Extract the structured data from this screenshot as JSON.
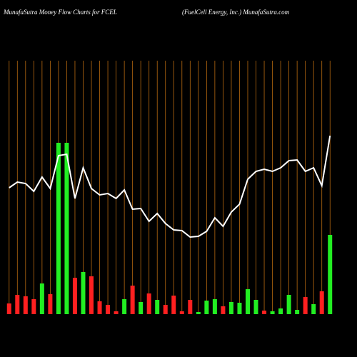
{
  "chart_data": {
    "type": "money-flow",
    "title": "MunafaSutra  Money Flow  Charts for FCEL",
    "subtitle": "(FuelCell Energy,  Inc.) MunafaSutra.com",
    "categories": [
      null,
      null,
      null,
      null,
      null,
      null,
      null,
      null,
      null,
      null,
      null,
      null,
      null,
      null,
      null,
      null,
      null,
      null,
      null,
      null,
      null,
      null,
      null,
      null,
      null,
      null,
      null,
      null,
      null,
      null,
      null,
      null,
      null,
      null,
      null,
      null,
      null,
      null,
      null,
      null
    ],
    "values": [
      15,
      27,
      25,
      21,
      43,
      28,
      240,
      240,
      51,
      59,
      53,
      18,
      13,
      4,
      21,
      40,
      17,
      29,
      20,
      13,
      26,
      4,
      20,
      3,
      19,
      21,
      11,
      17,
      16,
      35,
      20,
      5,
      4,
      8,
      27,
      6,
      24,
      14,
      32,
      111
    ],
    "colors": [
      "#ff2020",
      "#ff2020",
      "#ff2020",
      "#ff2020",
      "#22ee22",
      "#ff2020",
      "#22ee22",
      "#22ee22",
      "#ff2020",
      "#22ee22",
      "#ff2020",
      "#ff2020",
      "#ff2020",
      "#ff2020",
      "#22ee22",
      "#ff2020",
      "#22ee22",
      "#ff2020",
      "#22ee22",
      "#ff2020",
      "#ff2020",
      "#ff2020",
      "#ff2020",
      "#22ee22",
      "#22ee22",
      "#22ee22",
      "#ff2020",
      "#22ee22",
      "#22ee22",
      "#22ee22",
      "#22ee22",
      "#ff2020",
      "#22ee22",
      "#22ee22",
      "#22ee22",
      "#22ee22",
      "#ff2020",
      "#22ee22",
      "#ff2020",
      "#22ee22"
    ],
    "line_values": [
      177,
      185,
      183,
      172,
      192,
      176,
      222,
      224,
      162,
      205,
      176,
      167,
      169,
      162,
      174,
      147,
      148,
      130,
      141,
      127,
      118,
      117,
      108,
      109,
      116,
      135,
      123,
      143,
      154,
      189,
      200,
      203,
      200,
      205,
      215,
      216,
      200,
      205,
      180,
      250
    ],
    "line_color": "#ffffff",
    "ylim": [
      0,
      355
    ],
    "grid": true,
    "grid_color": "#b86a10"
  }
}
